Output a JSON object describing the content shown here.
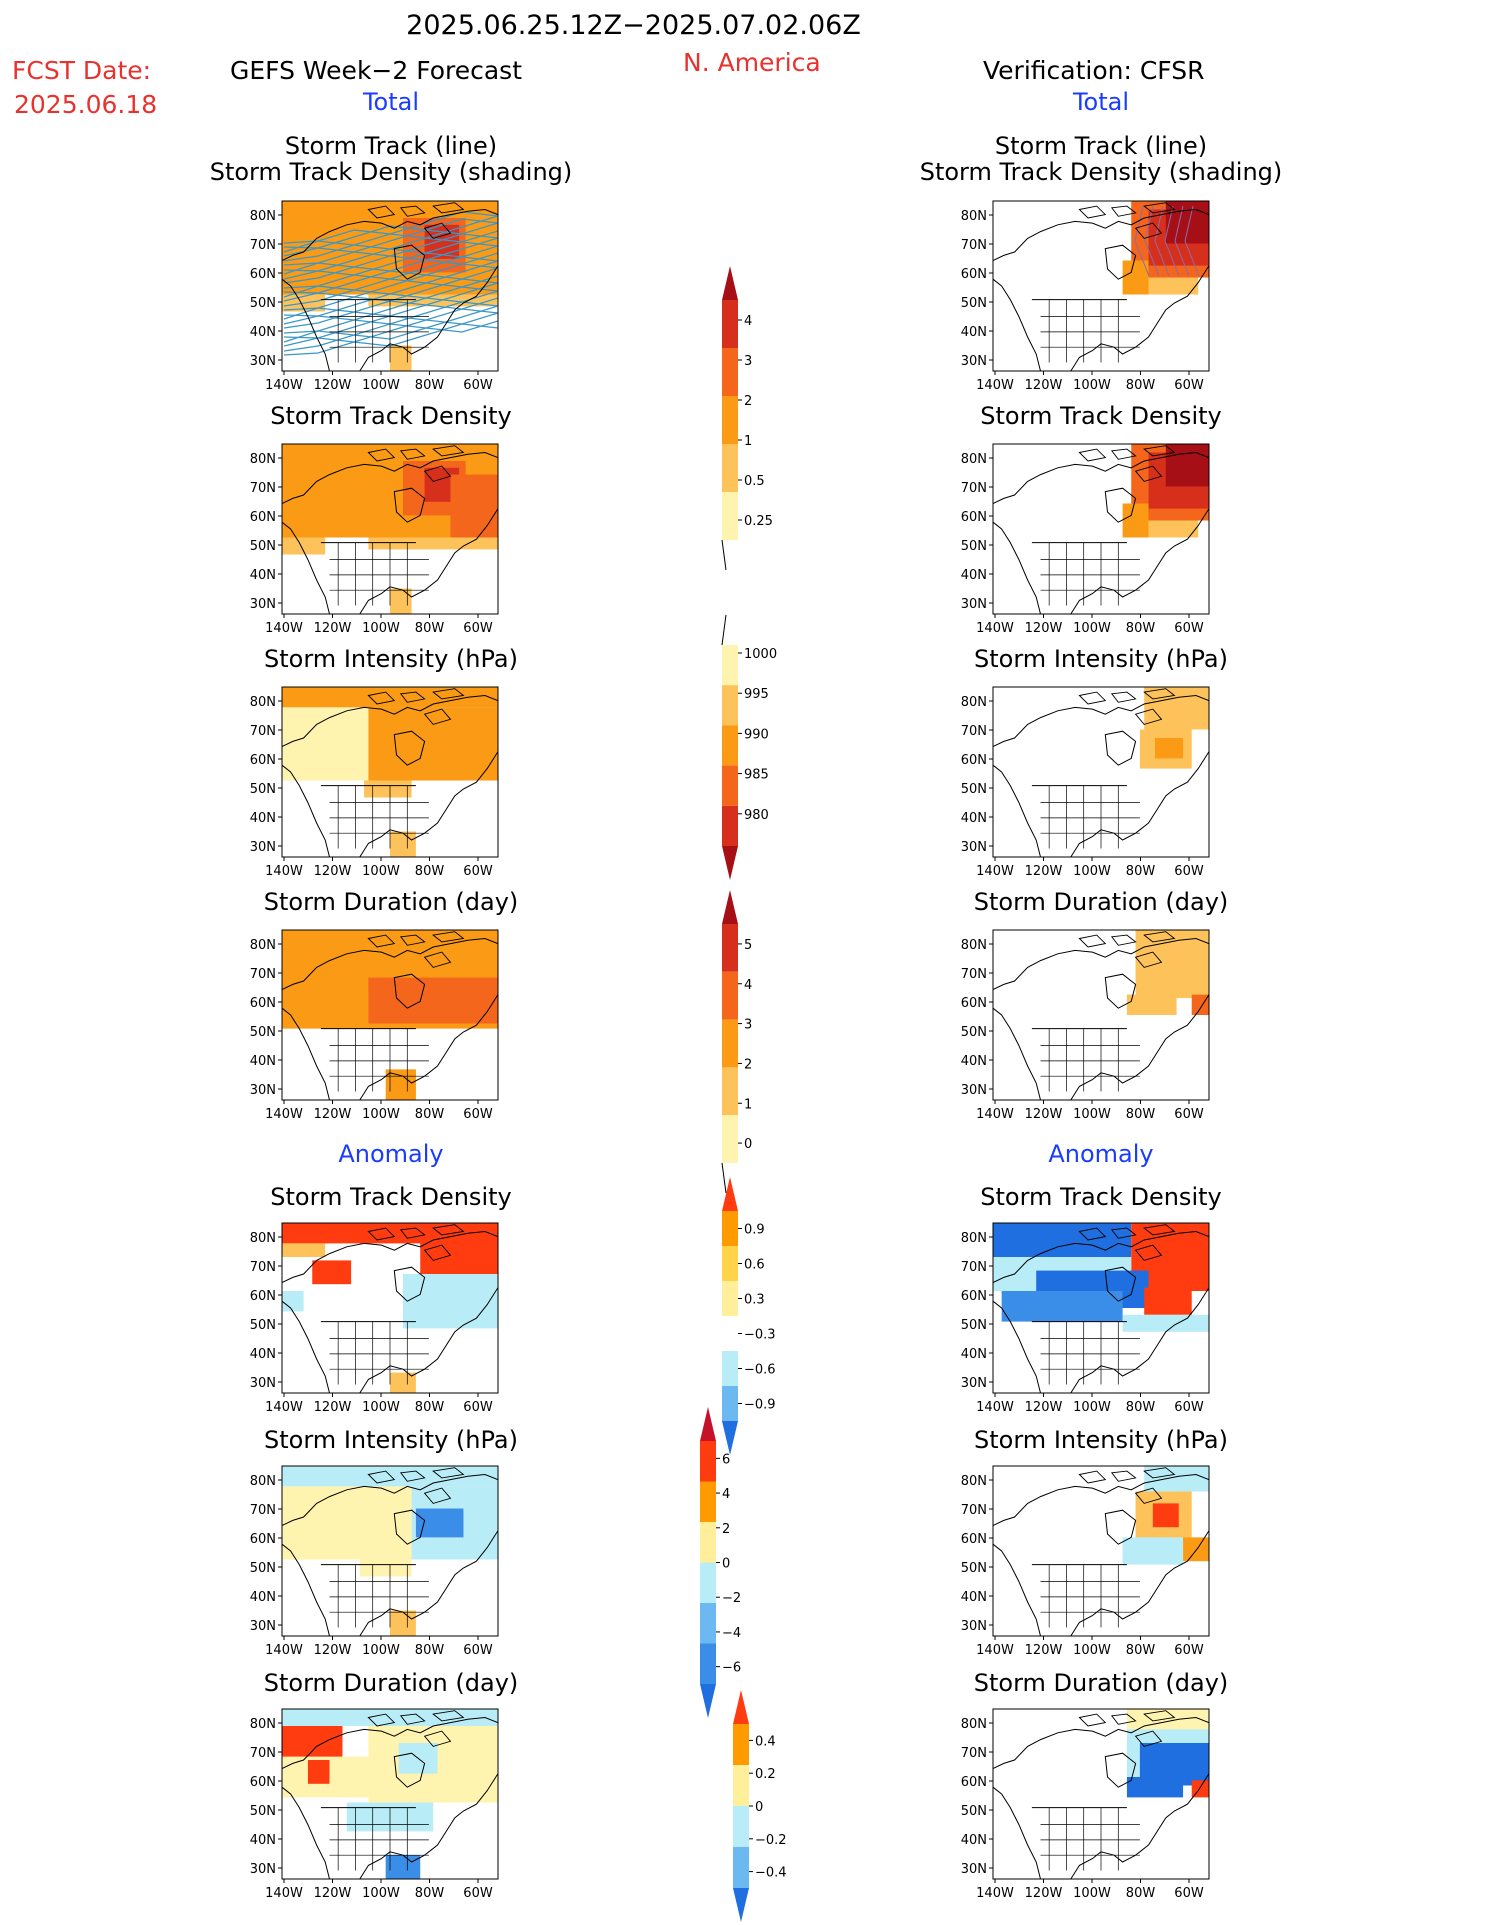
{
  "header": {
    "date_range": "2025.06.25.12Z−2025.07.02.06Z",
    "fcst_label": "FCST Date:",
    "fcst_date": "2025.06.18",
    "left_title": "GEFS Week−2 Forecast",
    "region": "N. America",
    "right_title": "Verification: CFSR"
  },
  "sections": {
    "total_label": "Total",
    "anomaly_label": "Anomaly"
  },
  "panel_titles": {
    "track_line": "Storm Track (line)",
    "track_density_shading": "Storm Track Density (shading)",
    "track_density": "Storm Track Density",
    "intensity": "Storm Intensity (hPa)",
    "duration": "Storm Duration (day)"
  },
  "axes": {
    "lat_labels": [
      "80N",
      "70N",
      "60N",
      "50N",
      "40N",
      "30N"
    ],
    "lon_labels": [
      "140W",
      "120W",
      "100W",
      "80W",
      "60W"
    ]
  },
  "colorbars": [
    {
      "id": "cb-density",
      "labels": [
        "4",
        "3",
        "2",
        "1",
        "0.5",
        "0.25"
      ],
      "colors": [
        "#a50f15",
        "#d6301d",
        "#f4661c",
        "#fb9a14",
        "#fdc35a",
        "#fff3b0"
      ]
    },
    {
      "id": "cb-intensity",
      "labels": [
        "1000",
        "995",
        "990",
        "985",
        "980"
      ],
      "colors": [
        "#fff3b0",
        "#fdc35a",
        "#fb9a14",
        "#f4661c",
        "#d6301d",
        "#a50f15"
      ]
    },
    {
      "id": "cb-duration",
      "labels": [
        "5",
        "4",
        "3",
        "2",
        "1",
        "0"
      ],
      "colors": [
        "#a50f15",
        "#d6301d",
        "#f4661c",
        "#fb9a14",
        "#fdc35a",
        "#fff3b0"
      ]
    },
    {
      "id": "cb-anom-density",
      "labels": [
        "0.9",
        "0.6",
        "0.3",
        "−0.3",
        "−0.6",
        "−0.9"
      ],
      "colors": [
        "#ff3b10",
        "#ff9a00",
        "#ffd34a",
        "#ffee9a",
        "#ffffff",
        "#b8ecf6",
        "#6cb8f0",
        "#1f6fe0"
      ]
    },
    {
      "id": "cb-anom-intensity",
      "labels": [
        "6",
        "4",
        "2",
        "0",
        "−2",
        "−4",
        "−6"
      ],
      "colors": [
        "#c4122a",
        "#ff3b10",
        "#ff9a00",
        "#ffee9a",
        "#b8ecf6",
        "#6cb8f0",
        "#3b8ee8",
        "#1f6fe0"
      ]
    },
    {
      "id": "cb-anom-duration",
      "labels": [
        "0.4",
        "0.2",
        "0",
        "−0.2",
        "−0.4"
      ],
      "colors": [
        "#ff3b10",
        "#ff9a00",
        "#ffee9a",
        "#b8ecf6",
        "#6cb8f0",
        "#1f6fe0"
      ]
    }
  ],
  "palette": {
    "pale_yellow": "#fff3b0",
    "light_orange": "#fdc35a",
    "orange": "#fb9a14",
    "dark_orange": "#f4661c",
    "red": "#d6301d",
    "dark_red": "#a50f15",
    "anom_red": "#ff3b10",
    "anom_light_blue": "#b8ecf6",
    "anom_blue": "#3b8ee8",
    "anom_dark_blue": "#1f6fe0",
    "track_line": "#3a97c8"
  }
}
